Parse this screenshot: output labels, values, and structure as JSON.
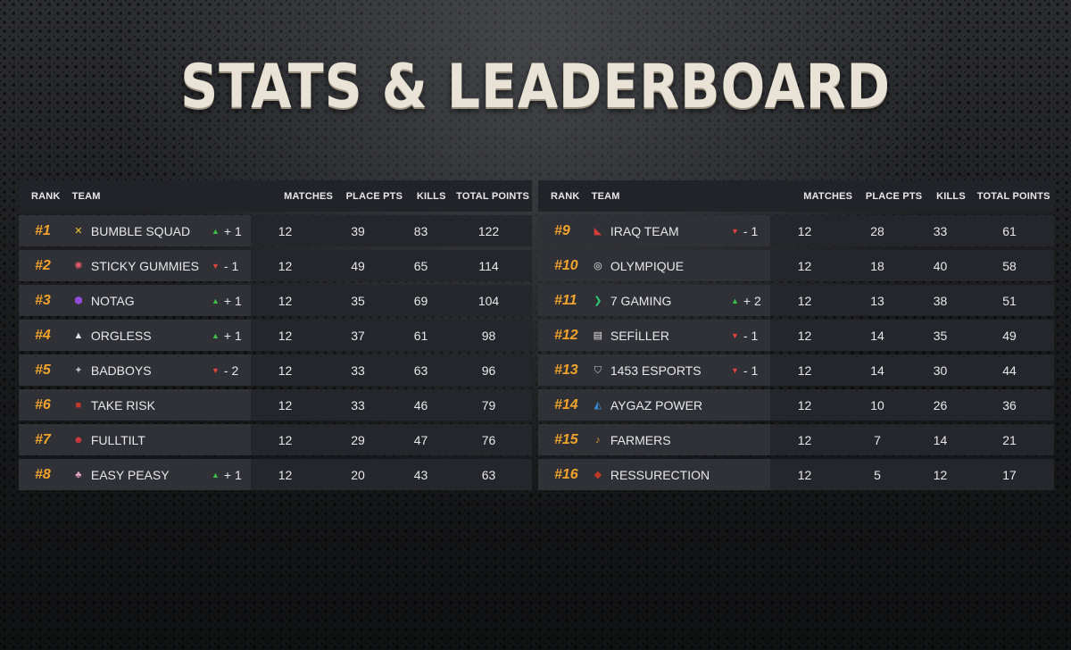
{
  "title": "STATS & LEADERBOARD",
  "headers": {
    "rank": "RANK",
    "team": "TEAM",
    "matches": "MATCHES",
    "place_pts": "PLACE PTS",
    "kills": "KILLS",
    "total_points": "TOTAL POINTS"
  },
  "colors": {
    "rank": "#f2a32b",
    "up": "#3fbf4a",
    "down": "#e0433d"
  },
  "left": [
    {
      "rank": "#1",
      "team": "BUMBLE SQUAD",
      "logo": "bee-icon",
      "logo_glyph": "✕",
      "logo_color": "#f2c230",
      "dir": "up",
      "change": "+ 1",
      "matches": "12",
      "place": "39",
      "kills": "83",
      "total": "122"
    },
    {
      "rank": "#2",
      "team": "STICKY GUMMIES",
      "logo": "gummy-icon",
      "logo_glyph": "✺",
      "logo_color": "#e25a6a",
      "dir": "down",
      "change": "- 1",
      "matches": "12",
      "place": "49",
      "kills": "65",
      "total": "114"
    },
    {
      "rank": "#3",
      "team": "NOTAG",
      "logo": "notag-icon",
      "logo_glyph": "⬢",
      "logo_color": "#8f4cd6",
      "dir": "up",
      "change": "+ 1",
      "matches": "12",
      "place": "35",
      "kills": "69",
      "total": "104"
    },
    {
      "rank": "#4",
      "team": "ORGLESS",
      "logo": "orgless-icon",
      "logo_glyph": "▲",
      "logo_color": "#dfe3ea",
      "dir": "up",
      "change": "+ 1",
      "matches": "12",
      "place": "37",
      "kills": "61",
      "total": "98"
    },
    {
      "rank": "#5",
      "team": "BADBOYS",
      "logo": "badboys-icon",
      "logo_glyph": "✦",
      "logo_color": "#b9bcc4",
      "dir": "down",
      "change": "- 2",
      "matches": "12",
      "place": "33",
      "kills": "63",
      "total": "96"
    },
    {
      "rank": "#6",
      "team": "TAKE RISK",
      "logo": "takerisk-icon",
      "logo_glyph": "■",
      "logo_color": "#c0392b",
      "dir": "",
      "change": "",
      "matches": "12",
      "place": "33",
      "kills": "46",
      "total": "79"
    },
    {
      "rank": "#7",
      "team": "FULLTILT",
      "logo": "fulltilt-icon",
      "logo_glyph": "☻",
      "logo_color": "#d63b3b",
      "dir": "",
      "change": "",
      "matches": "12",
      "place": "29",
      "kills": "47",
      "total": "76"
    },
    {
      "rank": "#8",
      "team": "EASY PEASY",
      "logo": "easypeasy-icon",
      "logo_glyph": "♣",
      "logo_color": "#e7a6c6",
      "dir": "up",
      "change": "+ 1",
      "matches": "12",
      "place": "20",
      "kills": "43",
      "total": "63"
    }
  ],
  "right": [
    {
      "rank": "#9",
      "team": "IRAQ TEAM",
      "logo": "iraq-team-icon",
      "logo_glyph": "◣",
      "logo_color": "#d43c3c",
      "dir": "down",
      "change": "- 1",
      "matches": "12",
      "place": "28",
      "kills": "33",
      "total": "61"
    },
    {
      "rank": "#10",
      "team": "OLYMPIQUE",
      "logo": "olympique-icon",
      "logo_glyph": "◎",
      "logo_color": "#f0f0f0",
      "dir": "",
      "change": "",
      "matches": "12",
      "place": "18",
      "kills": "40",
      "total": "58"
    },
    {
      "rank": "#11",
      "team": "7 GAMING",
      "logo": "7gaming-icon",
      "logo_glyph": "❯",
      "logo_color": "#2ecc71",
      "dir": "up",
      "change": "+ 2",
      "matches": "12",
      "place": "13",
      "kills": "38",
      "total": "51"
    },
    {
      "rank": "#12",
      "team": "SEFİLLER",
      "logo": "sefiller-icon",
      "logo_glyph": "▤",
      "logo_color": "#e8e0e0",
      "dir": "down",
      "change": "- 1",
      "matches": "12",
      "place": "14",
      "kills": "35",
      "total": "49"
    },
    {
      "rank": "#13",
      "team": "1453 ESPORTS",
      "logo": "1453-esports-icon",
      "logo_glyph": "⛉",
      "logo_color": "#c9c9c9",
      "dir": "down",
      "change": "- 1",
      "matches": "12",
      "place": "14",
      "kills": "30",
      "total": "44"
    },
    {
      "rank": "#14",
      "team": "AYGAZ POWER",
      "logo": "aygaz-power-icon",
      "logo_glyph": "◭",
      "logo_color": "#3b8fe0",
      "dir": "",
      "change": "",
      "matches": "12",
      "place": "10",
      "kills": "26",
      "total": "36"
    },
    {
      "rank": "#15",
      "team": "FARMERS",
      "logo": "farmers-icon",
      "logo_glyph": "♪",
      "logo_color": "#d9a23a",
      "dir": "",
      "change": "",
      "matches": "12",
      "place": "7",
      "kills": "14",
      "total": "21"
    },
    {
      "rank": "#16",
      "team": "RESSURECTION",
      "logo": "ressurection-icon",
      "logo_glyph": "◆",
      "logo_color": "#c0392b",
      "dir": "",
      "change": "",
      "matches": "12",
      "place": "5",
      "kills": "12",
      "total": "17"
    }
  ]
}
